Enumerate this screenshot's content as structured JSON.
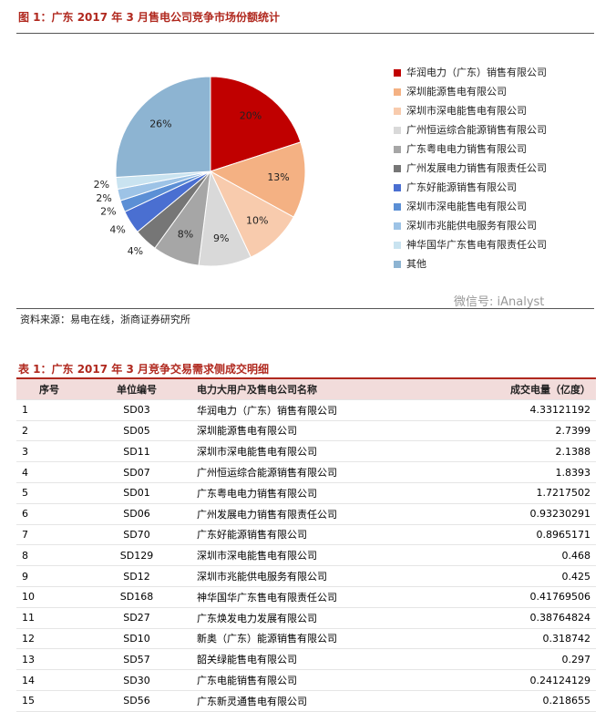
{
  "figure_caption": "图 1：广东 2017 年 3 月售电公司竞争市场份额统计",
  "chart_data": {
    "type": "pie",
    "categories": [
      "华润电力（广东）销售有限公司",
      "深圳能源售电有限公司",
      "深圳市深电能售电有限公司",
      "广州恒运综合能源销售有限公司",
      "广东粤电电力销售有限公司",
      "广州发展电力销售有限责任公司",
      "广东好能源销售有限公司",
      "深圳市深电能售电有限公司",
      "深圳市兆能供电服务有限公司",
      "神华国华广东售电有限责任公司",
      "其他"
    ],
    "values": [
      20,
      13,
      10,
      9,
      8,
      4,
      4,
      2,
      2,
      2,
      26
    ],
    "value_labels": [
      "20%",
      "13%",
      "10%",
      "9%",
      "8%",
      "4%",
      "4%",
      "2%",
      "2%",
      "2%",
      "26%"
    ],
    "colors": [
      "#c00000",
      "#f4b183",
      "#f8cbad",
      "#d9d9d9",
      "#a6a6a6",
      "#767676",
      "#4a6fd1",
      "#5b8fd5",
      "#9dc3e6",
      "#c9e3f0",
      "#8db4d2"
    ],
    "legend": "right"
  },
  "watermark": "微信号: iAnalyst",
  "source": "资料来源：易电在线，浙商证券研究所",
  "table_caption": "表 1：广东 2017 年 3 月竞争交易需求侧成交明细",
  "table": {
    "header": [
      "序号",
      "单位编号",
      "电力大用户及售电公司名称",
      "成交电量（亿度）"
    ],
    "rows": [
      [
        1,
        "SD03",
        "华润电力（广东）销售有限公司",
        4.33121192
      ],
      [
        2,
        "SD05",
        "深圳能源售电有限公司",
        2.7399
      ],
      [
        3,
        "SD11",
        "深圳市深电能售电有限公司",
        2.1388
      ],
      [
        4,
        "SD07",
        "广州恒运综合能源销售有限公司",
        1.8393
      ],
      [
        5,
        "SD01",
        "广东粤电电力销售有限公司",
        1.7217502
      ],
      [
        6,
        "SD06",
        "广州发展电力销售有限责任公司",
        0.93230291
      ],
      [
        7,
        "SD70",
        "广东好能源销售有限公司",
        0.8965171
      ],
      [
        8,
        "SD129",
        "深圳市深电能售电有限公司",
        0.468
      ],
      [
        9,
        "SD12",
        "深圳市兆能供电服务有限公司",
        0.425
      ],
      [
        10,
        "SD168",
        "神华国华广东售电有限责任公司",
        0.41769506
      ],
      [
        11,
        "SD27",
        "广东焕发电力发展有限公司",
        0.38764824
      ],
      [
        12,
        "SD10",
        "新奥（广东）能源销售有限公司",
        0.318742
      ],
      [
        13,
        "SD57",
        "韶关绿能售电有限公司",
        0.297
      ],
      [
        14,
        "SD30",
        "广东电能销售有限公司",
        0.24124129
      ],
      [
        15,
        "SD56",
        "广东新灵通售电有限公司",
        0.218655
      ]
    ]
  }
}
